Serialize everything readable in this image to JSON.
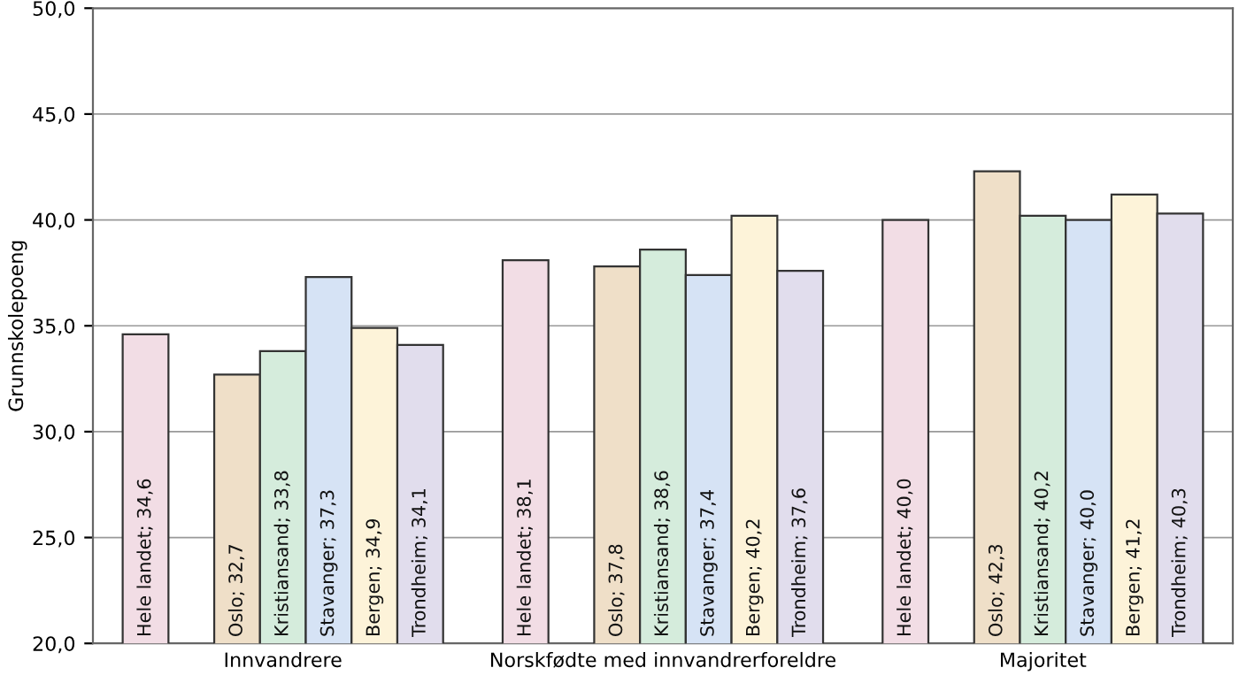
{
  "chart_data": {
    "type": "bar",
    "ylabel": "Grunnskolepoeng",
    "categories": [
      "Innvandrere",
      "Norskfødte med innvandrerforeldre",
      "Majoritet"
    ],
    "series": [
      {
        "color": "#f2dde5",
        "values": [
          34.6,
          38.1,
          40.0
        ],
        "value_labels": [
          "Hele landet; 34,6",
          "Hele landet; 38,1",
          "Hele landet; 40,0"
        ]
      },
      {
        "color": "#efdfc8",
        "values": [
          32.7,
          37.8,
          42.3
        ],
        "value_labels": [
          "Oslo; 32,7",
          "Oslo; 37,8",
          "Oslo; 42,3"
        ]
      },
      {
        "color": "#d5ecdc",
        "values": [
          33.8,
          38.6,
          40.2
        ],
        "value_labels": [
          "Kristiansand; 33,8",
          "Kristiansand; 38,6",
          "Kristiansand; 40,2"
        ]
      },
      {
        "color": "#d6e3f5",
        "values": [
          37.3,
          37.4,
          40.0
        ],
        "value_labels": [
          "Stavanger; 37,3",
          "Stavanger; 37,4",
          "Stavanger; 40,0"
        ]
      },
      {
        "color": "#fdf3d9",
        "values": [
          34.9,
          40.2,
          41.2
        ],
        "value_labels": [
          "Bergen; 34,9",
          "Bergen; 40,2",
          "Bergen; 41,2"
        ]
      },
      {
        "color": "#e1dded",
        "values": [
          34.1,
          37.6,
          40.3
        ],
        "value_labels": [
          "Trondheim; 34,1",
          "Trondheim; 37,6",
          "Trondheim; 40,3"
        ]
      }
    ],
    "ylim": [
      20,
      50
    ],
    "yticks": [
      {
        "value": 20,
        "label": "20,0"
      },
      {
        "value": 25,
        "label": "25,0"
      },
      {
        "value": 30,
        "label": "30,0"
      },
      {
        "value": 35,
        "label": "35,0"
      },
      {
        "value": 40,
        "label": "40,0"
      },
      {
        "value": 45,
        "label": "45,0"
      },
      {
        "value": 50,
        "label": "50,0"
      }
    ],
    "grid": "y",
    "legend": false
  }
}
